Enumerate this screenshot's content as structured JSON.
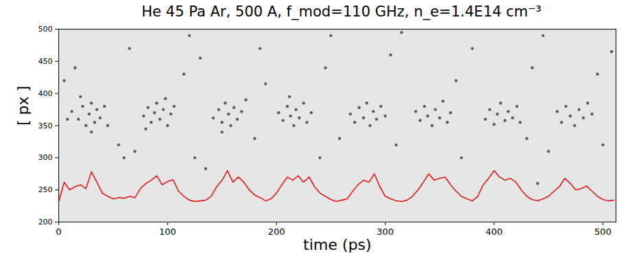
{
  "chart_data": {
    "type": "line",
    "title": "He 45 Pa Ar, 500 A, f_mod=110 GHz, n_e=1.4E14 cm⁻³",
    "xlabel": "time (ps)",
    "ylabel": "[ px ]",
    "xlim": [
      0,
      512
    ],
    "ylim": [
      200,
      500
    ],
    "xticks": [
      0,
      100,
      200,
      300,
      400,
      500
    ],
    "yticks": [
      200,
      250,
      300,
      350,
      400,
      450,
      500
    ],
    "series": [
      {
        "type": "scatter",
        "color": "#000000",
        "marker": "circle",
        "x": [
          12,
          18,
          22,
          25,
          28,
          30,
          33,
          35,
          38,
          42,
          20,
          30,
          8,
          45,
          78,
          82,
          85,
          88,
          90,
          93,
          96,
          100,
          103,
          106,
          80,
          98,
          142,
          147,
          150,
          153,
          156,
          158,
          161,
          164,
          168,
          172,
          150,
          202,
          206,
          210,
          213,
          216,
          218,
          221,
          225,
          228,
          232,
          212,
          268,
          272,
          276,
          280,
          283,
          286,
          289,
          292,
          296,
          300,
          328,
          332,
          336,
          339,
          343,
          346,
          350,
          353,
          357,
          360,
          392,
          396,
          400,
          403,
          406,
          410,
          413,
          417,
          421,
          424,
          458,
          462,
          466,
          470,
          474,
          478,
          482,
          486,
          490,
          5,
          15,
          55,
          60,
          65,
          70,
          115,
          120,
          125,
          130,
          180,
          185,
          190,
          240,
          245,
          250,
          258,
          305,
          310,
          315,
          365,
          370,
          380,
          430,
          435,
          445,
          450,
          495,
          500,
          508,
          440,
          135
        ],
        "values": [
          372,
          360,
          380,
          350,
          368,
          385,
          355,
          375,
          362,
          380,
          395,
          340,
          360,
          350,
          365,
          378,
          355,
          370,
          385,
          360,
          375,
          350,
          368,
          380,
          345,
          392,
          362,
          375,
          355,
          385,
          368,
          350,
          378,
          360,
          372,
          390,
          340,
          370,
          358,
          380,
          365,
          350,
          375,
          362,
          385,
          355,
          370,
          395,
          368,
          355,
          378,
          362,
          385,
          350,
          372,
          360,
          380,
          365,
          372,
          358,
          380,
          365,
          350,
          375,
          362,
          388,
          355,
          370,
          360,
          375,
          352,
          368,
          385,
          358,
          372,
          362,
          380,
          355,
          372,
          355,
          380,
          365,
          350,
          375,
          362,
          385,
          368,
          420,
          440,
          320,
          300,
          470,
          310,
          430,
          490,
          300,
          455,
          330,
          470,
          415,
          300,
          440,
          490,
          330,
          460,
          320,
          495,
          420,
          300,
          470,
          330,
          440,
          490,
          310,
          430,
          320,
          465,
          260,
          283
        ]
      },
      {
        "type": "line",
        "color": "#e8191b",
        "line_style": "solid",
        "x": [
          0,
          5,
          10,
          15,
          20,
          25,
          30,
          35,
          40,
          45,
          50,
          55,
          60,
          65,
          70,
          75,
          80,
          85,
          90,
          95,
          100,
          105,
          110,
          115,
          120,
          125,
          130,
          135,
          140,
          145,
          150,
          155,
          160,
          165,
          170,
          175,
          180,
          185,
          190,
          195,
          200,
          205,
          210,
          215,
          220,
          225,
          230,
          235,
          240,
          245,
          250,
          255,
          260,
          265,
          270,
          275,
          280,
          285,
          290,
          295,
          300,
          305,
          310,
          315,
          320,
          325,
          330,
          335,
          340,
          345,
          350,
          355,
          360,
          365,
          370,
          375,
          380,
          385,
          390,
          395,
          400,
          405,
          410,
          415,
          420,
          425,
          430,
          435,
          440,
          445,
          450,
          455,
          460,
          465,
          470,
          475,
          480,
          485,
          490,
          495,
          500,
          505,
          510
        ],
        "values": [
          232,
          262,
          250,
          255,
          258,
          252,
          278,
          262,
          245,
          240,
          236,
          238,
          237,
          240,
          238,
          252,
          260,
          265,
          272,
          258,
          263,
          266,
          248,
          240,
          234,
          232,
          233,
          234,
          240,
          255,
          265,
          280,
          262,
          270,
          262,
          250,
          242,
          238,
          233,
          236,
          245,
          258,
          270,
          265,
          272,
          262,
          270,
          255,
          245,
          240,
          235,
          232,
          234,
          236,
          248,
          258,
          265,
          262,
          275,
          255,
          240,
          236,
          233,
          232,
          234,
          240,
          250,
          262,
          275,
          265,
          268,
          270,
          258,
          248,
          240,
          236,
          233,
          240,
          258,
          268,
          280,
          270,
          265,
          268,
          262,
          250,
          240,
          235,
          233,
          236,
          240,
          248,
          255,
          268,
          260,
          250,
          252,
          256,
          248,
          240,
          235,
          233,
          234
        ]
      }
    ]
  }
}
